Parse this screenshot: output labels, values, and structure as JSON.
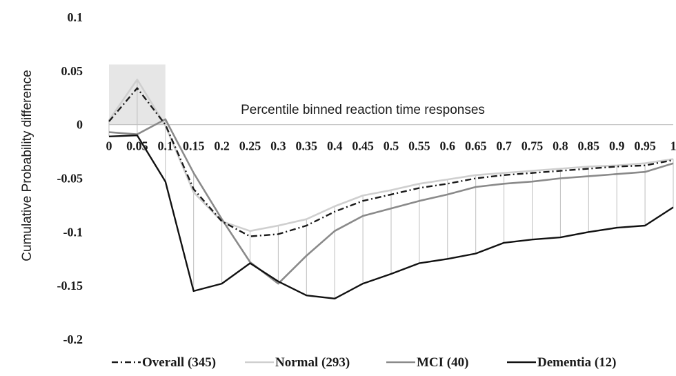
{
  "chart_data": {
    "type": "line",
    "xlabel": "Percentile binned reaction time responses",
    "ylabel": "Cumulative Probability difference",
    "x": [
      0,
      0.05,
      0.1,
      0.15,
      0.2,
      0.25,
      0.3,
      0.35,
      0.4,
      0.45,
      0.5,
      0.55,
      0.6,
      0.65,
      0.7,
      0.75,
      0.8,
      0.85,
      0.9,
      0.95,
      1
    ],
    "x_tick_labels": [
      "0",
      "0.05",
      "0.1",
      "0.15",
      "0.2",
      "0.25",
      "0.3",
      "0.35",
      "0.4",
      "0.45",
      "0.5",
      "0.55",
      "0.6",
      "0.65",
      "0.7",
      "0.75",
      "0.8",
      "0.85",
      "0.9",
      "0.95",
      "1"
    ],
    "ylim": [
      -0.2,
      0.1
    ],
    "y_ticks": [
      0.1,
      0.05,
      0,
      -0.05,
      -0.1,
      -0.15,
      -0.2
    ],
    "y_tick_labels": [
      "0.1",
      "0.05",
      "0",
      "-0.05",
      "-0.1",
      "-0.15",
      "-0.2"
    ],
    "grid": false,
    "drop_lines": true,
    "highlight_region": {
      "x": [
        0,
        0.1
      ],
      "y": [
        0,
        0.056
      ]
    },
    "legend_position": "bottom",
    "series": [
      {
        "name": "Overall (345)",
        "style": "dash-dot",
        "color": "#1a1a1a",
        "values": [
          0.003,
          0.034,
          0.0,
          -0.06,
          -0.09,
          -0.104,
          -0.102,
          -0.094,
          -0.081,
          -0.071,
          -0.065,
          -0.059,
          -0.055,
          -0.05,
          -0.047,
          -0.045,
          -0.043,
          -0.041,
          -0.039,
          -0.038,
          -0.033
        ]
      },
      {
        "name": "Normal (293)",
        "style": "solid",
        "color": "#cfcfcf",
        "values": [
          0.004,
          0.042,
          -0.001,
          -0.063,
          -0.09,
          -0.099,
          -0.094,
          -0.088,
          -0.076,
          -0.066,
          -0.061,
          -0.055,
          -0.051,
          -0.047,
          -0.045,
          -0.043,
          -0.041,
          -0.039,
          -0.038,
          -0.036,
          -0.032
        ]
      },
      {
        "name": "MCI (40)",
        "style": "solid",
        "color": "#8a8a8a",
        "values": [
          -0.007,
          -0.009,
          0.005,
          -0.045,
          -0.088,
          -0.128,
          -0.148,
          -0.122,
          -0.099,
          -0.085,
          -0.078,
          -0.071,
          -0.065,
          -0.058,
          -0.055,
          -0.053,
          -0.05,
          -0.048,
          -0.046,
          -0.044,
          -0.036
        ]
      },
      {
        "name": "Dementia (12)",
        "style": "solid",
        "color": "#111111",
        "values": [
          -0.011,
          -0.01,
          -0.053,
          -0.155,
          -0.148,
          -0.129,
          -0.146,
          -0.159,
          -0.162,
          -0.148,
          -0.139,
          -0.129,
          -0.125,
          -0.12,
          -0.11,
          -0.107,
          -0.105,
          -0.1,
          -0.096,
          -0.094,
          -0.077
        ]
      }
    ]
  }
}
